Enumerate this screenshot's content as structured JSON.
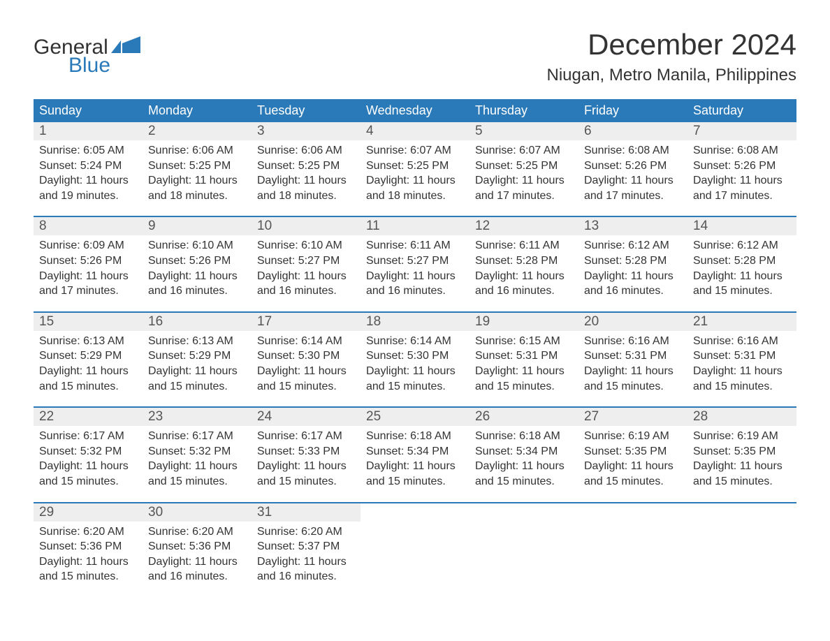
{
  "logo": {
    "word_general": "General",
    "word_blue": "Blue",
    "brand_color": "#2a7ab9",
    "shape_color": "#2a7ab9"
  },
  "header": {
    "month_title": "December 2024",
    "location": "Niugan, Metro Manila, Philippines"
  },
  "colors": {
    "header_bg": "#2a7ab9",
    "header_text": "#ffffff",
    "day_bar_bg": "#eeeeee",
    "text": "#333333",
    "day_number": "#555555",
    "week_border": "#2a7ab9",
    "background": "#ffffff"
  },
  "typography": {
    "title_fontsize": 42,
    "location_fontsize": 24,
    "weekday_fontsize": 18,
    "daynum_fontsize": 19,
    "body_fontsize": 16,
    "font_family": "Arial"
  },
  "weekdays": [
    "Sunday",
    "Monday",
    "Tuesday",
    "Wednesday",
    "Thursday",
    "Friday",
    "Saturday"
  ],
  "weeks": [
    [
      {
        "day": "1",
        "sunrise": "Sunrise: 6:05 AM",
        "sunset": "Sunset: 5:24 PM",
        "dl1": "Daylight: 11 hours",
        "dl2": "and 19 minutes."
      },
      {
        "day": "2",
        "sunrise": "Sunrise: 6:06 AM",
        "sunset": "Sunset: 5:25 PM",
        "dl1": "Daylight: 11 hours",
        "dl2": "and 18 minutes."
      },
      {
        "day": "3",
        "sunrise": "Sunrise: 6:06 AM",
        "sunset": "Sunset: 5:25 PM",
        "dl1": "Daylight: 11 hours",
        "dl2": "and 18 minutes."
      },
      {
        "day": "4",
        "sunrise": "Sunrise: 6:07 AM",
        "sunset": "Sunset: 5:25 PM",
        "dl1": "Daylight: 11 hours",
        "dl2": "and 18 minutes."
      },
      {
        "day": "5",
        "sunrise": "Sunrise: 6:07 AM",
        "sunset": "Sunset: 5:25 PM",
        "dl1": "Daylight: 11 hours",
        "dl2": "and 17 minutes."
      },
      {
        "day": "6",
        "sunrise": "Sunrise: 6:08 AM",
        "sunset": "Sunset: 5:26 PM",
        "dl1": "Daylight: 11 hours",
        "dl2": "and 17 minutes."
      },
      {
        "day": "7",
        "sunrise": "Sunrise: 6:08 AM",
        "sunset": "Sunset: 5:26 PM",
        "dl1": "Daylight: 11 hours",
        "dl2": "and 17 minutes."
      }
    ],
    [
      {
        "day": "8",
        "sunrise": "Sunrise: 6:09 AM",
        "sunset": "Sunset: 5:26 PM",
        "dl1": "Daylight: 11 hours",
        "dl2": "and 17 minutes."
      },
      {
        "day": "9",
        "sunrise": "Sunrise: 6:10 AM",
        "sunset": "Sunset: 5:26 PM",
        "dl1": "Daylight: 11 hours",
        "dl2": "and 16 minutes."
      },
      {
        "day": "10",
        "sunrise": "Sunrise: 6:10 AM",
        "sunset": "Sunset: 5:27 PM",
        "dl1": "Daylight: 11 hours",
        "dl2": "and 16 minutes."
      },
      {
        "day": "11",
        "sunrise": "Sunrise: 6:11 AM",
        "sunset": "Sunset: 5:27 PM",
        "dl1": "Daylight: 11 hours",
        "dl2": "and 16 minutes."
      },
      {
        "day": "12",
        "sunrise": "Sunrise: 6:11 AM",
        "sunset": "Sunset: 5:28 PM",
        "dl1": "Daylight: 11 hours",
        "dl2": "and 16 minutes."
      },
      {
        "day": "13",
        "sunrise": "Sunrise: 6:12 AM",
        "sunset": "Sunset: 5:28 PM",
        "dl1": "Daylight: 11 hours",
        "dl2": "and 16 minutes."
      },
      {
        "day": "14",
        "sunrise": "Sunrise: 6:12 AM",
        "sunset": "Sunset: 5:28 PM",
        "dl1": "Daylight: 11 hours",
        "dl2": "and 15 minutes."
      }
    ],
    [
      {
        "day": "15",
        "sunrise": "Sunrise: 6:13 AM",
        "sunset": "Sunset: 5:29 PM",
        "dl1": "Daylight: 11 hours",
        "dl2": "and 15 minutes."
      },
      {
        "day": "16",
        "sunrise": "Sunrise: 6:13 AM",
        "sunset": "Sunset: 5:29 PM",
        "dl1": "Daylight: 11 hours",
        "dl2": "and 15 minutes."
      },
      {
        "day": "17",
        "sunrise": "Sunrise: 6:14 AM",
        "sunset": "Sunset: 5:30 PM",
        "dl1": "Daylight: 11 hours",
        "dl2": "and 15 minutes."
      },
      {
        "day": "18",
        "sunrise": "Sunrise: 6:14 AM",
        "sunset": "Sunset: 5:30 PM",
        "dl1": "Daylight: 11 hours",
        "dl2": "and 15 minutes."
      },
      {
        "day": "19",
        "sunrise": "Sunrise: 6:15 AM",
        "sunset": "Sunset: 5:31 PM",
        "dl1": "Daylight: 11 hours",
        "dl2": "and 15 minutes."
      },
      {
        "day": "20",
        "sunrise": "Sunrise: 6:16 AM",
        "sunset": "Sunset: 5:31 PM",
        "dl1": "Daylight: 11 hours",
        "dl2": "and 15 minutes."
      },
      {
        "day": "21",
        "sunrise": "Sunrise: 6:16 AM",
        "sunset": "Sunset: 5:31 PM",
        "dl1": "Daylight: 11 hours",
        "dl2": "and 15 minutes."
      }
    ],
    [
      {
        "day": "22",
        "sunrise": "Sunrise: 6:17 AM",
        "sunset": "Sunset: 5:32 PM",
        "dl1": "Daylight: 11 hours",
        "dl2": "and 15 minutes."
      },
      {
        "day": "23",
        "sunrise": "Sunrise: 6:17 AM",
        "sunset": "Sunset: 5:32 PM",
        "dl1": "Daylight: 11 hours",
        "dl2": "and 15 minutes."
      },
      {
        "day": "24",
        "sunrise": "Sunrise: 6:17 AM",
        "sunset": "Sunset: 5:33 PM",
        "dl1": "Daylight: 11 hours",
        "dl2": "and 15 minutes."
      },
      {
        "day": "25",
        "sunrise": "Sunrise: 6:18 AM",
        "sunset": "Sunset: 5:34 PM",
        "dl1": "Daylight: 11 hours",
        "dl2": "and 15 minutes."
      },
      {
        "day": "26",
        "sunrise": "Sunrise: 6:18 AM",
        "sunset": "Sunset: 5:34 PM",
        "dl1": "Daylight: 11 hours",
        "dl2": "and 15 minutes."
      },
      {
        "day": "27",
        "sunrise": "Sunrise: 6:19 AM",
        "sunset": "Sunset: 5:35 PM",
        "dl1": "Daylight: 11 hours",
        "dl2": "and 15 minutes."
      },
      {
        "day": "28",
        "sunrise": "Sunrise: 6:19 AM",
        "sunset": "Sunset: 5:35 PM",
        "dl1": "Daylight: 11 hours",
        "dl2": "and 15 minutes."
      }
    ],
    [
      {
        "day": "29",
        "sunrise": "Sunrise: 6:20 AM",
        "sunset": "Sunset: 5:36 PM",
        "dl1": "Daylight: 11 hours",
        "dl2": "and 15 minutes."
      },
      {
        "day": "30",
        "sunrise": "Sunrise: 6:20 AM",
        "sunset": "Sunset: 5:36 PM",
        "dl1": "Daylight: 11 hours",
        "dl2": "and 16 minutes."
      },
      {
        "day": "31",
        "sunrise": "Sunrise: 6:20 AM",
        "sunset": "Sunset: 5:37 PM",
        "dl1": "Daylight: 11 hours",
        "dl2": "and 16 minutes."
      },
      {
        "day": "",
        "sunrise": "",
        "sunset": "",
        "dl1": "",
        "dl2": ""
      },
      {
        "day": "",
        "sunrise": "",
        "sunset": "",
        "dl1": "",
        "dl2": ""
      },
      {
        "day": "",
        "sunrise": "",
        "sunset": "",
        "dl1": "",
        "dl2": ""
      },
      {
        "day": "",
        "sunrise": "",
        "sunset": "",
        "dl1": "",
        "dl2": ""
      }
    ]
  ]
}
